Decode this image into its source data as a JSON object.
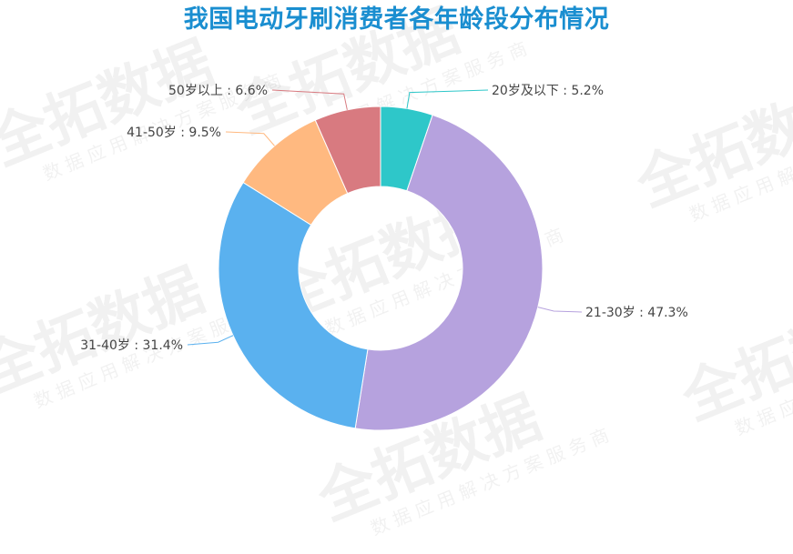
{
  "chart_data": {
    "type": "pie",
    "variant": "donut",
    "title": "我国电动牙刷消费者各年龄段分布情况",
    "categories": [
      "20岁及以下",
      "21-30岁",
      "31-40岁",
      "41-50岁",
      "50岁以上"
    ],
    "values": [
      5.2,
      47.3,
      31.4,
      9.5,
      6.6
    ],
    "unit": "%",
    "labels": [
      "20岁及以下 : 5.2%",
      "21-30岁 : 47.3%",
      "31-40岁 : 31.4%",
      "41-50岁 : 9.5%",
      "50岁以上 : 6.6%"
    ],
    "colors": [
      "#2ec7c9",
      "#b6a2de",
      "#5ab1ef",
      "#ffb980",
      "#d87a80"
    ],
    "start": "top, clockwise",
    "legend": "none"
  },
  "watermark": {
    "main": "全拓数据",
    "sub": "数据应用解决方案服务商"
  }
}
